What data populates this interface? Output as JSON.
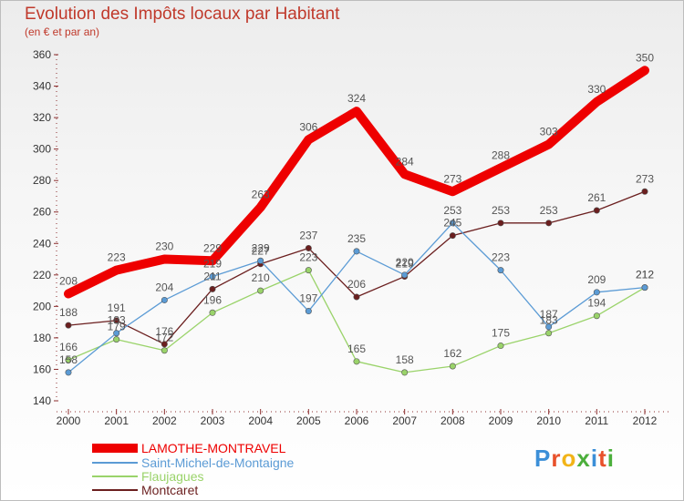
{
  "chart_data": {
    "type": "line",
    "title": "Evolution des Impôts locaux par Habitant",
    "subtitle": "(en € et par an)",
    "categories": [
      "2000",
      "2001",
      "2002",
      "2003",
      "2004",
      "2005",
      "2006",
      "2007",
      "2008",
      "2009",
      "2010",
      "2011",
      "2012"
    ],
    "ylim": [
      140,
      360
    ],
    "yticks": [
      140,
      160,
      180,
      200,
      220,
      240,
      260,
      280,
      300,
      320,
      340,
      360
    ],
    "series": [
      {
        "name": "LAMOTHE-MONTRAVEL",
        "color": "#ee0000",
        "values": [
          208,
          223,
          230,
          229,
          263,
          306,
          324,
          284,
          273,
          288,
          303,
          330,
          350
        ]
      },
      {
        "name": "Saint-Michel-de-Montaigne",
        "color": "#5b9bd5",
        "values": [
          158,
          183,
          204,
          219,
          229,
          197,
          235,
          220,
          253,
          223,
          187,
          209,
          212
        ]
      },
      {
        "name": "Flaujagues",
        "color": "#9ad36a",
        "values": [
          166,
          179,
          172,
          196,
          210,
          223,
          165,
          158,
          162,
          175,
          183,
          194,
          212
        ]
      },
      {
        "name": "Montcaret",
        "color": "#6b1f1f",
        "values": [
          188,
          191,
          176,
          211,
          227,
          237,
          206,
          219,
          245,
          253,
          253,
          261,
          273
        ]
      }
    ],
    "legend_position": "bottom-left",
    "grid": false
  },
  "logo": {
    "text": "Proxiti"
  }
}
